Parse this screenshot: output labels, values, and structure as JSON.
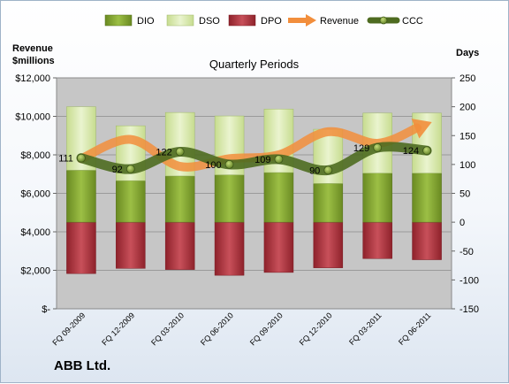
{
  "chart_data": {
    "type": "bar",
    "title": "Quarterly Periods",
    "company": "ABB Ltd.",
    "left_axis": {
      "title_line1": "Revenue",
      "title_line2": "$millions",
      "min": 0,
      "max": 12000,
      "ticks": [
        "$-",
        "$2,000",
        "$4,000",
        "$6,000",
        "$8,000",
        "$10,000",
        "$12,000"
      ]
    },
    "right_axis": {
      "title": "Days",
      "min": -150,
      "max": 250,
      "ticks": [
        "-150",
        "-100",
        "-50",
        "0",
        "50",
        "100",
        "150",
        "200",
        "250"
      ]
    },
    "categories": [
      "FQ 09-2009",
      "FQ 12-2009",
      "FQ 03-2010",
      "FQ 06-2010",
      "FQ 09-2010",
      "FQ 12-2010",
      "FQ 03-2011",
      "FQ 06-2011"
    ],
    "legend": [
      "DIO",
      "DSO",
      "DPO",
      "Revenue",
      "CCC"
    ],
    "series": [
      {
        "name": "DIO",
        "axis": "right",
        "values": [
          90,
          72,
          80,
          82,
          86,
          67,
          85,
          85
        ]
      },
      {
        "name": "DSO",
        "axis": "right",
        "values": [
          110,
          95,
          110,
          102,
          110,
          94,
          104,
          104
        ]
      },
      {
        "name": "DPO",
        "axis": "right",
        "values": [
          -89,
          -80,
          -82,
          -92,
          -87,
          -79,
          -63,
          -65
        ]
      },
      {
        "name": "Revenue",
        "axis": "left",
        "values": [
          7800,
          8800,
          7400,
          7800,
          8000,
          9200,
          8600,
          9600
        ]
      },
      {
        "name": "CCC",
        "axis": "right",
        "values": [
          111,
          92,
          122,
          100,
          109,
          90,
          129,
          124
        ]
      }
    ],
    "ccc_labels": [
      "111",
      "92",
      "122",
      "100",
      "109",
      "90",
      "129",
      "124"
    ],
    "colors": {
      "DIO": "#7fa02c",
      "DSO": "#d5e6a8",
      "DPO": "#a9323b",
      "Revenue": "#f28e3c",
      "CCC": "#4e6b20",
      "plot_bg": "#c6c6c6"
    },
    "grid": true,
    "legend_position": "top"
  }
}
